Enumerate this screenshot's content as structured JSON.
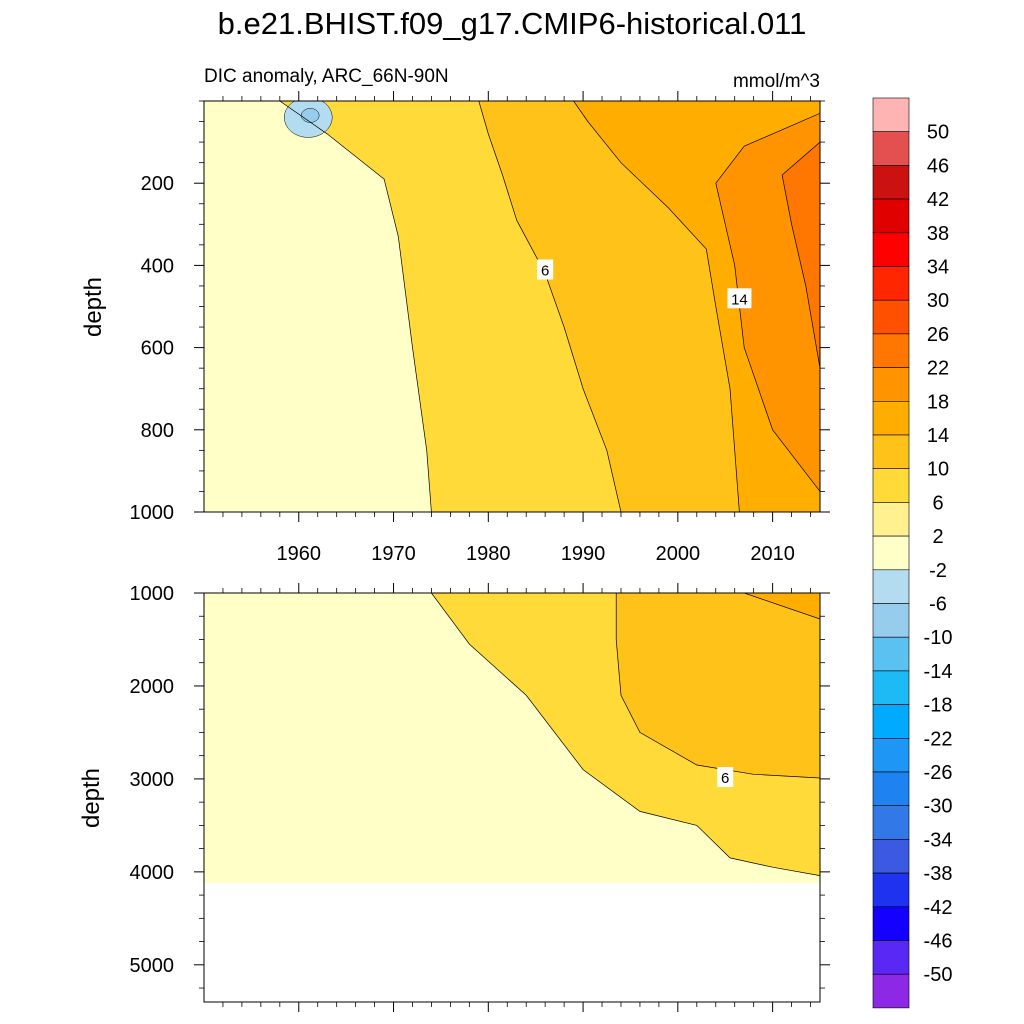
{
  "figure_title": "b.e21.BHIST.f09_g17.CMIP6-historical.011",
  "chart_data": [
    {
      "type": "contour",
      "panel": "upper",
      "title_left": "DIC anomaly, ARC_66N-90N",
      "title_right": "mmol/m^3",
      "xlabel": "",
      "ylabel": "depth",
      "xlim": [
        1950,
        2015
      ],
      "ylim": [
        0,
        1000
      ],
      "y_inverted": true,
      "x_ticks": [
        1960,
        1970,
        1980,
        1990,
        2000,
        2010
      ],
      "x_tick_labels": [
        "1960",
        "1970",
        "1980",
        "1990",
        "2000",
        "2010"
      ],
      "y_ticks": [
        200,
        400,
        600,
        800,
        1000
      ],
      "y_tick_labels": [
        "200",
        "400",
        "600",
        "800",
        "1000"
      ],
      "contour_labels": [
        {
          "text": "6",
          "x": 1986,
          "y": 410
        },
        {
          "text": "14",
          "x": 2006.5,
          "y": 480
        }
      ],
      "contours": [
        {
          "level": 2,
          "points": [
            [
              1958,
              0
            ],
            [
              1963,
              80
            ],
            [
              1969,
              190
            ],
            [
              1970.5,
              330
            ],
            [
              1972,
              600
            ],
            [
              1973.5,
              850
            ],
            [
              1974,
              1000
            ]
          ]
        },
        {
          "level": 6,
          "points": [
            [
              1979,
              0
            ],
            [
              1980,
              80
            ],
            [
              1981.5,
              180
            ],
            [
              1983,
              290
            ],
            [
              1986,
              420
            ],
            [
              1988,
              550
            ],
            [
              1990,
              700
            ],
            [
              1992.5,
              850
            ],
            [
              1994,
              1000
            ]
          ]
        },
        {
          "level": 10,
          "points": [
            [
              1989,
              0
            ],
            [
              1990.5,
              50
            ],
            [
              1994,
              150
            ],
            [
              1999,
              260
            ],
            [
              2003,
              360
            ],
            [
              2004,
              500
            ],
            [
              2005.5,
              700
            ],
            [
              2006.5,
              1000
            ]
          ]
        },
        {
          "level": 14,
          "points": [
            [
              2015,
              30
            ],
            [
              2007,
              110
            ],
            [
              2004,
              200
            ],
            [
              2006,
              400
            ],
            [
              2007,
              600
            ],
            [
              2010,
              800
            ],
            [
              2015,
              950
            ]
          ]
        },
        {
          "level": 18,
          "points": [
            [
              2015,
              100
            ],
            [
              2011,
              180
            ],
            [
              2012,
              300
            ],
            [
              2013.5,
              450
            ],
            [
              2015,
              650
            ]
          ]
        }
      ],
      "anomaly_features": [
        {
          "level": -2,
          "center": [
            1961,
            40
          ],
          "note": "small negative patch near surface"
        }
      ]
    },
    {
      "type": "contour",
      "panel": "lower",
      "xlabel": "",
      "ylabel": "depth",
      "xlim": [
        1950,
        2015
      ],
      "ylim": [
        1000,
        5400
      ],
      "y_inverted": true,
      "y_ticks": [
        1000,
        2000,
        3000,
        4000,
        5000
      ],
      "y_tick_labels": [
        "1000",
        "2000",
        "3000",
        "4000",
        "5000"
      ],
      "data_bottom_depth": 4120,
      "contour_labels": [
        {
          "text": "6",
          "x": 2005,
          "y": 2980
        }
      ],
      "contours": [
        {
          "level": 2,
          "points": [
            [
              1974,
              1000
            ],
            [
              1978,
              1550
            ],
            [
              1984,
              2100
            ],
            [
              1990,
              2900
            ],
            [
              1996,
              3350
            ],
            [
              2002,
              3500
            ],
            [
              2005.5,
              3850
            ],
            [
              2010,
              3950
            ],
            [
              2015,
              4040
            ]
          ]
        },
        {
          "level": 6,
          "points": [
            [
              1993.5,
              1000
            ],
            [
              1993.5,
              1500
            ],
            [
              1994,
              2100
            ],
            [
              1996,
              2500
            ],
            [
              2002,
              2850
            ],
            [
              2008,
              2950
            ],
            [
              2015,
              2990
            ]
          ]
        },
        {
          "level": 10,
          "points": [
            [
              2007,
              1000
            ],
            [
              2015,
              1280
            ]
          ]
        }
      ]
    }
  ],
  "colorbar": {
    "labels": [
      "50",
      "46",
      "42",
      "38",
      "34",
      "30",
      "26",
      "22",
      "18",
      "14",
      "10",
      "6",
      "2",
      "-2",
      "-6",
      "-10",
      "-14",
      "-18",
      "-22",
      "-26",
      "-30",
      "-34",
      "-38",
      "-42",
      "-46",
      "-50"
    ],
    "colors": [
      "#FFB4B4",
      "#E45050",
      "#CC1111",
      "#E00000",
      "#FF0000",
      "#FF2600",
      "#FF5000",
      "#FF7700",
      "#FF9400",
      "#FFAE00",
      "#FFC218",
      "#FFDA38",
      "#FFF090",
      "#FFFFC8",
      "#B4DCF0",
      "#96CDED",
      "#5AC1F0",
      "#1EBAF5",
      "#00AAFF",
      "#1E96F5",
      "#1E82F0",
      "#3278E6",
      "#3C5AE1",
      "#1E32F0",
      "#1400FF",
      "#5A28F5",
      "#8C28E6"
    ]
  }
}
